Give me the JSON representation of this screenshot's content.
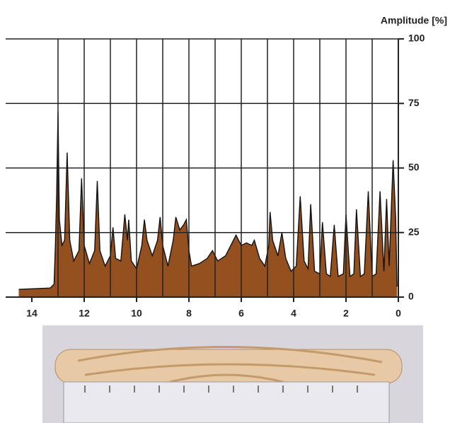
{
  "chart_data": {
    "type": "area",
    "y_label": "Amplitude [%]",
    "x": [
      14.5,
      13.3,
      13.15,
      13.1,
      13.05,
      13.0,
      12.95,
      12.85,
      12.75,
      12.65,
      12.55,
      12.4,
      12.2,
      12.1,
      12.0,
      11.8,
      11.6,
      11.5,
      11.4,
      11.2,
      11.0,
      10.9,
      10.8,
      10.6,
      10.45,
      10.35,
      10.3,
      10.2,
      10.0,
      9.8,
      9.7,
      9.6,
      9.4,
      9.2,
      9.1,
      9.0,
      8.8,
      8.6,
      8.5,
      8.35,
      8.2,
      8.1,
      8.0,
      7.9,
      7.6,
      7.3,
      7.1,
      6.9,
      6.6,
      6.4,
      6.2,
      6.0,
      5.8,
      5.6,
      5.5,
      5.3,
      5.1,
      4.95,
      4.9,
      4.8,
      4.6,
      4.45,
      4.3,
      4.1,
      3.9,
      3.75,
      3.6,
      3.45,
      3.35,
      3.2,
      3.0,
      2.9,
      2.75,
      2.6,
      2.45,
      2.3,
      2.1,
      2.0,
      1.85,
      1.7,
      1.6,
      1.45,
      1.3,
      1.15,
      1.0,
      0.85,
      0.7,
      0.55,
      0.45,
      0.35,
      0.2,
      0.1,
      0.05
    ],
    "series": [
      {
        "color": "#94511f",
        "values": [
          3,
          3.5,
          5,
          20,
          40,
          72,
          30,
          20,
          22,
          56,
          22,
          14,
          18,
          46,
          20,
          13,
          18,
          45,
          18,
          12,
          16,
          27,
          15,
          14,
          32,
          22,
          30,
          14,
          11,
          20,
          30,
          22,
          16,
          22,
          31,
          20,
          12,
          22,
          31,
          26,
          28,
          30,
          18,
          12,
          13,
          15,
          18,
          14,
          16,
          20,
          24,
          20,
          21,
          20,
          22,
          15,
          12,
          20,
          33,
          22,
          16,
          25,
          15,
          10,
          12,
          39,
          14,
          11,
          36,
          10,
          9,
          29,
          9,
          8,
          28,
          8,
          9,
          32,
          8,
          9,
          34,
          8,
          9,
          41,
          8,
          9,
          41,
          10,
          38,
          12,
          53,
          30,
          4
        ]
      }
    ],
    "xlim": [
      15,
      0
    ],
    "ylim": [
      0,
      100
    ],
    "xticks": [
      14,
      12,
      10,
      8,
      6,
      4,
      2,
      0
    ],
    "xgrid": [
      13,
      12,
      11,
      10,
      9,
      8,
      7,
      6,
      5,
      4,
      3,
      2,
      1
    ],
    "yticks": [
      0,
      25,
      50,
      75,
      100
    ],
    "grid": true
  }
}
